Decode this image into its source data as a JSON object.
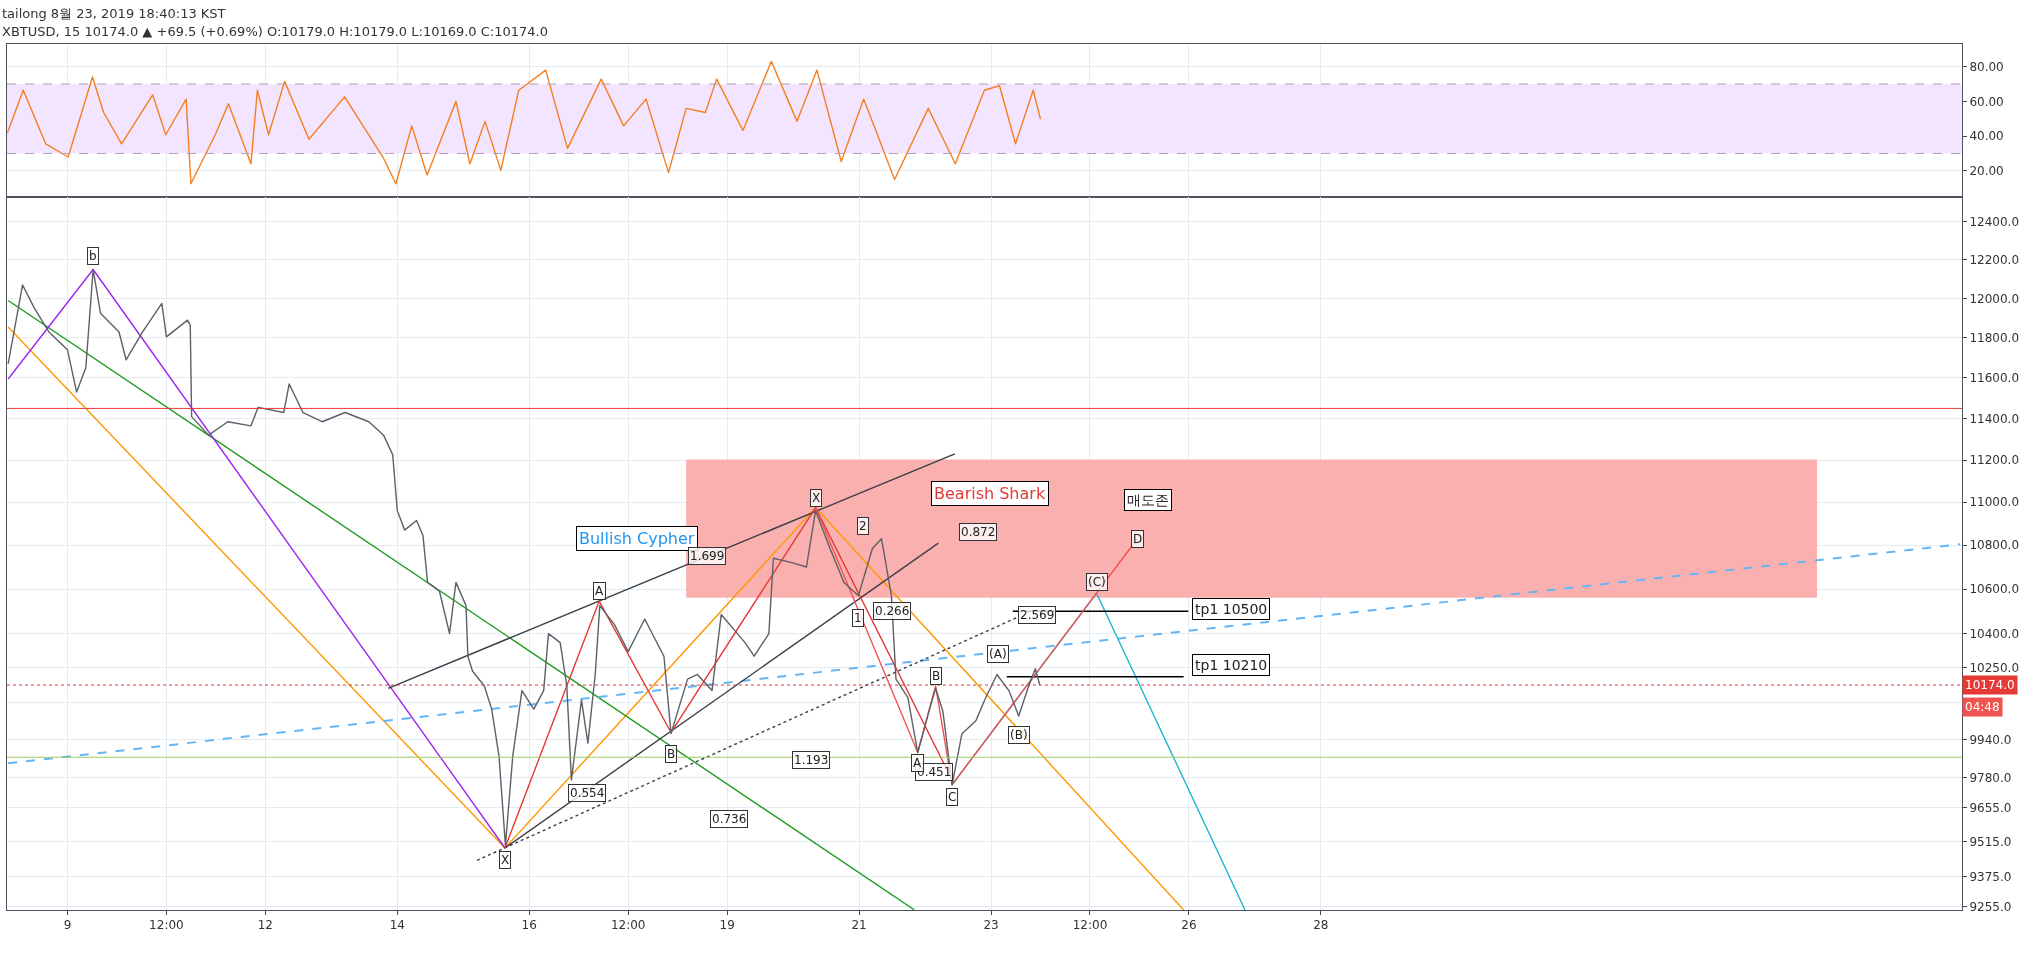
{
  "chart_data": [
    {
      "type": "line",
      "title": "tailong 8월 23, 2019 18:40:13 KST",
      "subtitle": "XBTUSD, 15 10174.0 ▲ +69.5 (+0.69%) O:10179.0 H:10179.0 L:10169.0 C:10174.0",
      "x": [
        "2019-08-08T02:10",
        "2019-08-08T07:55",
        "2019-08-08T16:05",
        "2019-08-09T00:15",
        "2019-08-09T09:05",
        "2019-08-09T13:10",
        "2019-08-09T19:40",
        "2019-08-10T07:00",
        "2019-08-10T11:45",
        "2019-08-10T19:10",
        "2019-08-10T20:55",
        "2019-08-11T05:45",
        "2019-08-11T10:35",
        "2019-08-11T18:45",
        "2019-08-11T21:05",
        "2019-08-12T01:10",
        "2019-08-12T07:00",
        "2019-08-12T15:50",
        "2019-08-13T04:50",
        "2019-08-13T18:45",
        "2019-08-13T23:30",
        "2019-08-14T05:15",
        "2019-08-14T10:50",
        "2019-08-14T21:20",
        "2019-08-15T02:25",
        "2019-08-15T07:55",
        "2019-08-15T13:40",
        "2019-08-15T20:10",
        "2019-08-16T06:00",
        "2019-08-16T13:55",
        "2019-08-17T02:10",
        "2019-08-17T10:20",
        "2019-08-17T18:30",
        "2019-08-18T02:40",
        "2019-08-18T09:05",
        "2019-08-18T16:05",
        "2019-08-18T20:10",
        "2019-08-19T05:45",
        "2019-08-19T16:05",
        "2019-08-20T01:25",
        "2019-08-20T08:40",
        "2019-08-20T17:30",
        "2019-08-21T01:40",
        "2019-08-21T12:55",
        "2019-08-22T01:10",
        "2019-08-22T11:00",
        "2019-08-22T21:35",
        "2019-08-23T03:05",
        "2019-08-23T08:55",
        "2019-08-23T15:20",
        "2019-08-23T18:00"
      ],
      "values": [
        42,
        66.4,
        35.6,
        28,
        74,
        53.6,
        35.6,
        63.8,
        40.8,
        61.3,
        12.6,
        40.8,
        58.7,
        24.1,
        66.4,
        40.8,
        71.5,
        38.2,
        62.6,
        28,
        12.6,
        45.9,
        17.7,
        60,
        24.1,
        48.5,
        20.3,
        66.4,
        78,
        33,
        72.8,
        45.9,
        61.3,
        19,
        56,
        53.6,
        72.8,
        43.3,
        83,
        48.5,
        78,
        25.4,
        61.3,
        15.1,
        56,
        24.1,
        66.4,
        69,
        35.6,
        66.4,
        49.7
      ],
      "color": "#f57f20",
      "bands": [
        {
          "axis": "y",
          "from": 30,
          "to": 70,
          "color": "#f3e5ff"
        }
      ],
      "ref_lines": [
        {
          "axis": "y",
          "value": 30,
          "color": "#b0a0b8",
          "line_style": "dashed"
        },
        {
          "axis": "y",
          "value": 70,
          "color": "#b0a0b8",
          "line_style": "dashed"
        }
      ],
      "xlim": [
        "2019-08-08T02:00",
        "2019-09-06T17:15"
      ],
      "ylim": [
        5,
        93
      ],
      "yticks": [
        {
          "value": 20,
          "label": "20.00"
        },
        {
          "value": 40,
          "label": "40.00"
        },
        {
          "value": 60,
          "label": "60.00"
        },
        {
          "value": 80,
          "label": "80.00"
        }
      ],
      "tick_labels": "y",
      "grid": true
    },
    {
      "type": "line",
      "log": "y",
      "grid": true,
      "xlim": [
        "2019-08-08T02:00",
        "2019-09-06T17:15"
      ],
      "ylim": [
        9242,
        12532
      ],
      "xticks": [
        {
          "value": "2019-08-09",
          "label": "9"
        },
        {
          "value": "2019-08-10T12:00",
          "label": "12:00"
        },
        {
          "value": "2019-08-12",
          "label": "12"
        },
        {
          "value": "2019-08-14",
          "label": "14"
        },
        {
          "value": "2019-08-16",
          "label": "16"
        },
        {
          "value": "2019-08-17T12:00",
          "label": "12:00"
        },
        {
          "value": "2019-08-19",
          "label": "19"
        },
        {
          "value": "2019-08-21",
          "label": "21"
        },
        {
          "value": "2019-08-23",
          "label": "23"
        },
        {
          "value": "2019-08-24T12:00",
          "label": "12:00"
        },
        {
          "value": "2019-08-26",
          "label": "26"
        },
        {
          "value": "2019-08-28",
          "label": "28"
        }
      ],
      "yticks": [
        {
          "value": 12400,
          "label": "12400.0"
        },
        {
          "value": 12200,
          "label": "12200.0"
        },
        {
          "value": 12000,
          "label": "12000.0"
        },
        {
          "value": 11800,
          "label": "11800.0"
        },
        {
          "value": 11600,
          "label": "11600.0"
        },
        {
          "value": 11400,
          "label": "11400.0"
        },
        {
          "value": 11200,
          "label": "11200.0"
        },
        {
          "value": 11000,
          "label": "11000.0"
        },
        {
          "value": 10800,
          "label": "10800.0"
        },
        {
          "value": 10600,
          "label": "10600.0"
        },
        {
          "value": 10400,
          "label": "10400.0"
        },
        {
          "value": 10250,
          "label": "10250.0"
        },
        {
          "value": 10100,
          "label": null
        },
        {
          "value": 9940,
          "label": "9940.0"
        },
        {
          "value": 9780,
          "label": "9780.0"
        },
        {
          "value": 9655,
          "label": "9655.0"
        },
        {
          "value": 9515,
          "label": "9515.0"
        },
        {
          "value": 9375,
          "label": "9375.0"
        },
        {
          "value": 9255,
          "label": "9255.0"
        }
      ],
      "series": [
        {
          "type": "line",
          "color": "#fbb0b0",
          "x": [
            "2019-08-18T09:05",
            "2019-09-04T12:30"
          ],
          "values": [
            11200,
            11200
          ],
          "lower": [
            10560,
            10560
          ],
          "upper": [
            11200,
            11200
          ]
        },
        {
          "type": "line",
          "color": "#ff9800",
          "x": [
            "2019-08-08T02:25",
            "2019-08-15T15:10"
          ],
          "values": [
            11855,
            9490
          ]
        },
        {
          "type": "line",
          "color": "#ff9800",
          "x": [
            "2019-08-15T15:10",
            "2019-08-20T08:10",
            "2019-08-25T22:05"
          ],
          "values": [
            9490,
            10975,
            9242
          ]
        },
        {
          "type": "line",
          "color": "#1e9c1e",
          "x": [
            "2019-08-08T02:25",
            "2019-08-21T20:10"
          ],
          "values": [
            11990,
            9242
          ]
        },
        {
          "type": "line",
          "color": "#9c27f0",
          "x": [
            "2019-08-08T02:25",
            "2019-08-09T09:20",
            "2019-08-15T15:10"
          ],
          "values": [
            11595,
            12150,
            9490
          ]
        },
        {
          "type": "line",
          "color": "#64b5f6",
          "line_style": "dashed",
          "x": [
            "2019-08-08T02:25",
            "2019-09-06T16:35"
          ],
          "values": [
            9840,
            10805
          ]
        },
        {
          "type": "line",
          "color": "#3c3f47",
          "x": [
            "2019-08-13T20:40",
            "2019-08-22T10:50"
          ],
          "values": [
            10160,
            11230
          ]
        },
        {
          "type": "line",
          "color": "#3c3f47",
          "x": [
            "2019-08-15T15:10",
            "2019-08-22T04:50"
          ],
          "values": [
            9490,
            10810
          ]
        },
        {
          "type": "line",
          "color": "#3c3f47",
          "line_style": "dotted",
          "x": [
            "2019-08-15T05:00",
            "2019-08-23T10:05"
          ],
          "values": [
            9440,
            10475
          ]
        },
        {
          "type": "line",
          "color": "#1fb6d1",
          "x": [
            "2019-08-22T09:50",
            "2019-08-24T14:25",
            "2019-08-26T20:25"
          ],
          "values": [
            9750,
            10580,
            9242
          ]
        },
        {
          "type": "line",
          "color": "#000000",
          "x": [
            "2019-08-23T07:55",
            "2019-08-25T23:45"
          ],
          "values": [
            10500,
            10500
          ]
        },
        {
          "type": "line",
          "color": "#000000",
          "x": [
            "2019-08-23T05:45",
            "2019-08-25T22:05"
          ],
          "values": [
            10210,
            10210
          ]
        },
        {
          "type": "line",
          "color": "#e53935",
          "x": [
            "2019-08-15T15:10",
            "2019-08-17T01:25",
            "2019-08-18T03:35",
            "2019-08-20T08:10",
            "2019-08-22T09:50"
          ],
          "values": [
            9490,
            10545,
            9970,
            10975,
            9770
          ]
        },
        {
          "type": "line",
          "color": "#ef5350",
          "x": [
            "2019-08-20T08:10",
            "2019-08-21T21:20",
            "2019-08-22T03:50",
            "2019-08-22T09:50",
            "2019-08-25T05:15"
          ],
          "values": [
            10975,
            9885,
            10170,
            9750,
            10830
          ]
        },
        {
          "type": "line",
          "color": "#5d6067",
          "x": [
            "2019-08-08T02:25",
            "2019-08-08T07:40",
            "2019-08-08T12:00",
            "2019-08-08T17:15",
            "2019-08-09T00:00",
            "2019-08-09T03:20",
            "2019-08-09T06:40",
            "2019-08-09T09:20",
            "2019-08-09T12:00",
            "2019-08-09T18:45",
            "2019-08-09T21:20",
            "2019-08-10T03:20",
            "2019-08-10T10:20",
            "2019-08-10T12:00",
            "2019-08-10T19:40",
            "2019-08-10T20:40",
            "2019-08-10T21:10",
            "2019-08-11T03:20",
            "2019-08-11T10:20",
            "2019-08-11T18:45",
            "2019-08-11T21:20",
            "2019-08-12T06:40",
            "2019-08-12T08:40",
            "2019-08-12T13:40",
            "2019-08-12T20:40",
            "2019-08-13T05:00",
            "2019-08-13T13:40",
            "2019-08-13T19:00",
            "2019-08-13T22:20",
            "2019-08-14T00:00",
            "2019-08-14T02:40",
            "2019-08-14T07:00",
            "2019-08-14T09:20",
            "2019-08-14T11:00",
            "2019-08-14T15:20",
            "2019-08-14T19:00",
            "2019-08-14T21:20",
            "2019-08-15T01:00",
            "2019-08-15T01:40",
            "2019-08-15T03:20",
            "2019-08-15T07:40",
            "2019-08-15T10:20",
            "2019-08-15T13:00",
            "2019-08-15T15:20",
            "2019-08-15T18:00",
            "2019-08-15T21:20",
            "2019-08-16T01:40",
            "2019-08-16T05:15",
            "2019-08-16T07:00",
            "2019-08-16T11:15",
            "2019-08-16T13:40",
            "2019-08-16T15:20",
            "2019-08-16T19:00",
            "2019-08-16T21:20",
            "2019-08-17T00:00",
            "2019-08-17T01:40",
            "2019-08-17T07:00",
            "2019-08-17T12:00",
            "2019-08-17T18:00",
            "2019-08-18T01:00",
            "2019-08-18T03:35",
            "2019-08-18T09:35",
            "2019-08-18T13:10",
            "2019-08-18T18:30",
            "2019-08-18T21:50",
            "2019-08-19T06:30",
            "2019-08-19T09:50",
            "2019-08-19T15:10",
            "2019-08-19T16:50",
            "2019-08-19T23:30",
            "2019-08-20T04:50",
            "2019-08-20T08:10",
            "2019-08-20T13:25",
            "2019-08-20T18:30",
            "2019-08-20T23:45",
            "2019-08-21T04:50",
            "2019-08-21T08:10",
            "2019-08-21T11:45",
            "2019-08-21T13:25",
            "2019-08-21T17:45",
            "2019-08-21T21:20",
            "2019-08-22T01:25",
            "2019-08-22T03:50",
            "2019-08-22T06:30",
            "2019-08-22T09:50",
            "2019-08-22T13:25",
            "2019-08-22T18:30",
            "2019-08-22T22:05",
            "2019-08-23T02:10",
            "2019-08-23T06:30",
            "2019-08-23T10:05",
            "2019-08-23T13:25",
            "2019-08-23T16:05",
            "2019-08-23T17:45"
          ],
          "values": [
            11670,
            12070,
            11950,
            11830,
            11740,
            11530,
            11650,
            12150,
            11925,
            11830,
            11690,
            11830,
            11975,
            11805,
            11890,
            11865,
            11410,
            11320,
            11385,
            11365,
            11455,
            11430,
            11570,
            11430,
            11385,
            11430,
            11385,
            11320,
            11225,
            10960,
            10870,
            10915,
            10845,
            10630,
            10590,
            10400,
            10630,
            10525,
            10300,
            10235,
            10170,
            10070,
            9870,
            9500,
            9870,
            10150,
            10070,
            10150,
            10400,
            10360,
            10170,
            9770,
            10110,
            9925,
            10220,
            10525,
            10440,
            10320,
            10465,
            10300,
            9965,
            10200,
            10220,
            10150,
            10485,
            10360,
            10300,
            10400,
            10740,
            10720,
            10700,
            10960,
            10785,
            10630,
            10570,
            10785,
            10830,
            10570,
            10200,
            10120,
            9885,
            10060,
            10160,
            10060,
            9750,
            9965,
            10020,
            10120,
            10220,
            10150,
            10040,
            10160,
            10245,
            10174
          ]
        }
      ],
      "ref_lines": [
        {
          "axis": "y",
          "value": 11450,
          "color": "#e53935",
          "line_style": "solid"
        },
        {
          "axis": "y",
          "value": 9865,
          "color": "#9ccc65",
          "line_style": "solid"
        },
        {
          "axis": "y",
          "value": 10174,
          "label": "10174.0",
          "color": "#e53935",
          "line_style": "dotted"
        }
      ],
      "annotations": [
        "04:48",
        "Bullish Cypher",
        "Bearish Shark",
        "매도존",
        "tp1 10500",
        "tp1 10210",
        {
          "text": "1.699",
          "x": "2019-08-18T16:50",
          "y": 10750
        },
        {
          "text": "0.554",
          "x": "2019-08-16T21:10",
          "y": 9715
        },
        {
          "text": "0.736",
          "x": "2019-08-19T00:30",
          "y": 9610
        },
        {
          "text": "1.193",
          "x": "2019-08-20T06:30",
          "y": 9855
        },
        {
          "text": "0.872",
          "x": "2019-08-22T19:25",
          "y": 10860
        },
        {
          "text": "0.266",
          "x": "2019-08-21T12:00",
          "y": 10500
        },
        {
          "text": "2.569",
          "x": "2019-08-23T16:50",
          "y": 10485
        },
        {
          "text": "0.451",
          "x": "2019-08-22T03:10",
          "y": 9805
        },
        {
          "text": "b",
          "x": "2019-08-09T09:20",
          "y": 12220
        },
        {
          "text": "X",
          "x": "2019-08-15T15:10",
          "y": 9440
        },
        {
          "text": "A",
          "x": "2019-08-17T01:25",
          "y": 10590
        },
        {
          "text": "B",
          "x": "2019-08-18T03:35",
          "y": 9880
        },
        {
          "text": "X",
          "x": "2019-08-20T08:10",
          "y": 11020
        },
        {
          "text": "A",
          "x": "2019-08-21T21:20",
          "y": 9840
        },
        {
          "text": "B",
          "x": "2019-08-22T03:50",
          "y": 10215
        },
        {
          "text": "C",
          "x": "2019-08-22T09:50",
          "y": 9700
        },
        {
          "text": "D",
          "x": "2019-08-25T05:15",
          "y": 10830
        },
        {
          "text": "1",
          "x": "2019-08-20T23:45",
          "y": 10470
        },
        {
          "text": "2",
          "x": "2019-08-21T01:25",
          "y": 10890
        },
        {
          "text": "(A)",
          "x": "2019-08-23T02:40",
          "y": 10310
        },
        {
          "text": "(B)",
          "x": "2019-08-23T10:05",
          "y": 9960
        },
        {
          "text": "(C)",
          "x": "2019-08-24T14:25",
          "y": 10630
        }
      ]
    }
  ]
}
